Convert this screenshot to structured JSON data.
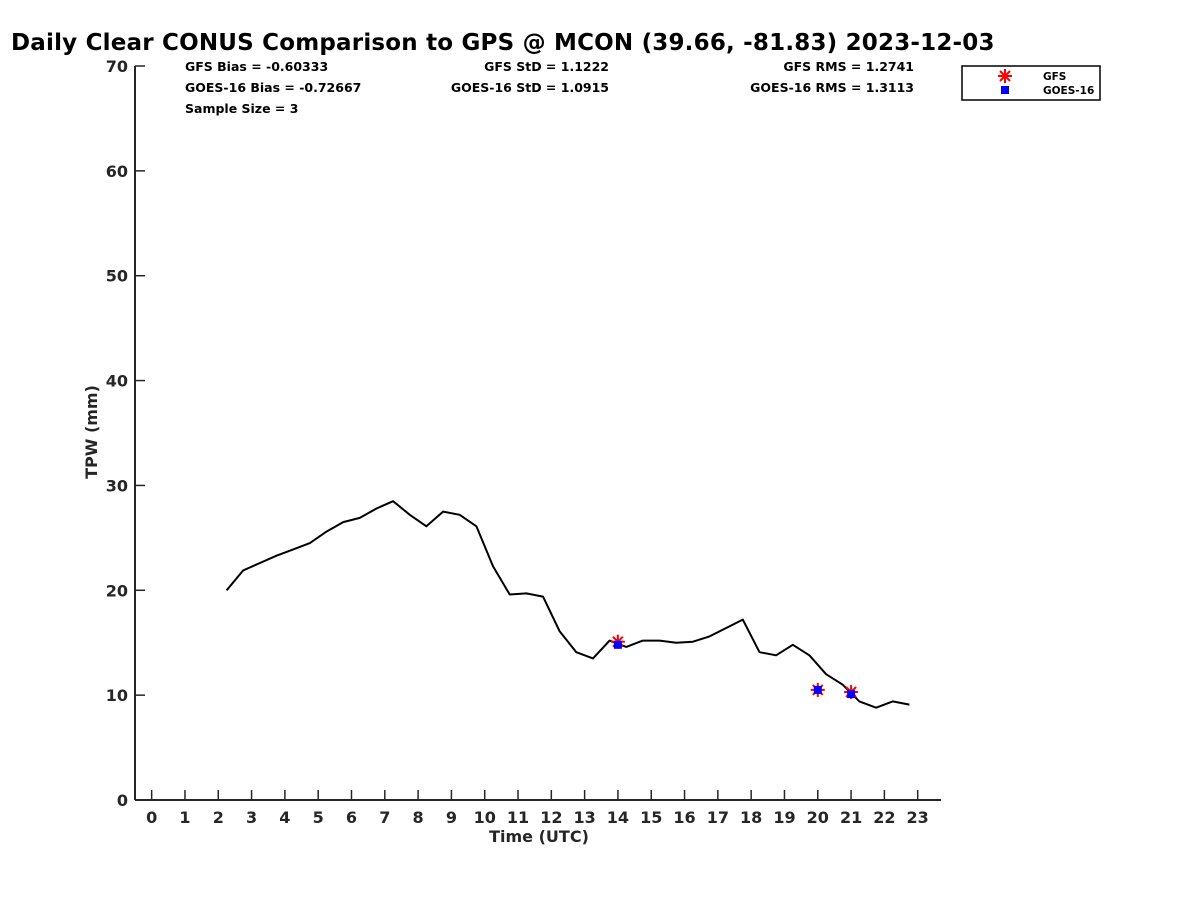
{
  "chart_data": {
    "type": "line",
    "title": "Daily Clear CONUS Comparison to GPS @ MCON (39.66, -81.83) 2023-12-03",
    "xlabel": "Time (UTC)",
    "ylabel": "TPW (mm)",
    "xlim": [
      -0.5,
      23.7
    ],
    "ylim": [
      0,
      70
    ],
    "x_ticks": [
      0,
      1,
      2,
      3,
      4,
      5,
      6,
      7,
      8,
      9,
      10,
      11,
      12,
      13,
      14,
      15,
      16,
      17,
      18,
      19,
      20,
      21,
      22,
      23
    ],
    "y_ticks": [
      0,
      10,
      20,
      30,
      40,
      50,
      60,
      70
    ],
    "grid": false,
    "legend_position": "top-right",
    "stats": {
      "gfs_bias": "GFS Bias = -0.60333",
      "goes_bias": "GOES-16 Bias = -0.72667",
      "sample_size": "Sample Size = 3",
      "gfs_std": "GFS StD = 1.1222",
      "goes_std": "GOES-16 StD = 1.0915",
      "gfs_rms": "GFS RMS = 1.2741",
      "goes_rms": "GOES-16 RMS = 1.3113"
    },
    "series": [
      {
        "color": "#000000",
        "marker": "none",
        "x": [
          2.25,
          2.75,
          3.25,
          3.75,
          4.25,
          4.75,
          5.25,
          5.75,
          6.25,
          6.75,
          7.25,
          7.75,
          8.25,
          8.75,
          9.25,
          9.75,
          10.25,
          10.75,
          11.25,
          11.75,
          12.25,
          12.75,
          13.25,
          13.75,
          14.25,
          14.75,
          15.25,
          15.75,
          16.25,
          16.75,
          17.25,
          17.75,
          18.25,
          18.75,
          19.25,
          19.75,
          20.25,
          20.75,
          21.25,
          21.75,
          22.25,
          22.75
        ],
        "values": [
          20.0,
          21.9,
          22.6,
          23.3,
          23.9,
          24.5,
          25.6,
          26.5,
          26.9,
          27.8,
          28.5,
          27.2,
          26.1,
          27.5,
          27.2,
          26.1,
          22.3,
          19.6,
          19.7,
          19.4,
          16.1,
          14.1,
          13.5,
          15.2,
          14.6,
          15.2,
          15.2,
          15.0,
          15.1,
          15.6,
          16.4,
          17.2,
          14.1,
          13.8,
          14.8,
          13.8,
          12.0,
          11.0,
          9.4,
          8.8,
          9.4,
          9.1
        ]
      },
      {
        "name": "GFS",
        "color": "#ff0000",
        "marker": "asterisk",
        "x": [
          14,
          20,
          21
        ],
        "values": [
          15.1,
          10.5,
          10.3
        ]
      },
      {
        "name": "GOES-16",
        "color": "#0000ff",
        "marker": "square",
        "x": [
          14,
          20,
          21
        ],
        "values": [
          14.8,
          10.5,
          10.1
        ]
      }
    ]
  }
}
